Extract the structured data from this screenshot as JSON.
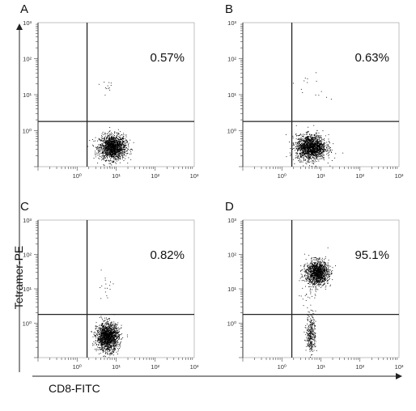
{
  "figure": {
    "y_axis_title": "Tetramer-PE",
    "x_axis_title": "CD8-FITC"
  },
  "chart_data": [
    {
      "type": "scatter",
      "panel": "A",
      "x_axis": "CD8-FITC",
      "y_axis": "Tetramer-PE",
      "x_scale": "log",
      "y_scale": "log",
      "x_range": [
        0.1,
        1000
      ],
      "y_range": [
        0.1,
        1000
      ],
      "x_tick_labels": [
        "10⁰",
        "10¹",
        "10²",
        "10³"
      ],
      "y_tick_labels": [
        "10⁰",
        "10¹",
        "10²",
        "10³"
      ],
      "quadrant_gate": {
        "x": 1.8,
        "y": 1.8
      },
      "annotation": "0.57%",
      "populations": [
        {
          "x_center": 8,
          "y_center": 0.35,
          "spread_x": 0.17,
          "spread_y": 0.17,
          "count": 1600
        },
        {
          "x_center": 6,
          "y_center": 18,
          "spread_x": 0.12,
          "spread_y": 0.12,
          "count": 12
        }
      ]
    },
    {
      "type": "scatter",
      "panel": "B",
      "x_axis": "CD8-FITC",
      "y_axis": "Tetramer-PE",
      "x_scale": "log",
      "y_scale": "log",
      "x_range": [
        0.1,
        1000
      ],
      "y_range": [
        0.1,
        1000
      ],
      "x_tick_labels": [
        "10⁰",
        "10¹",
        "10²",
        "10³"
      ],
      "y_tick_labels": [
        "10⁰",
        "10¹",
        "10²",
        "10³"
      ],
      "quadrant_gate": {
        "x": 1.8,
        "y": 1.8
      },
      "annotation": "0.63%",
      "populations": [
        {
          "x_center": 5.5,
          "y_center": 0.35,
          "spread_x": 0.19,
          "spread_y": 0.17,
          "count": 1700
        },
        {
          "x_center": 6,
          "y_center": 15,
          "spread_x": 0.2,
          "spread_y": 0.2,
          "count": 14
        }
      ]
    },
    {
      "type": "scatter",
      "panel": "C",
      "x_axis": "CD8-FITC",
      "y_axis": "Tetramer-PE",
      "x_scale": "log",
      "y_scale": "log",
      "x_range": [
        0.1,
        1000
      ],
      "y_range": [
        0.1,
        1000
      ],
      "x_tick_labels": [
        "10⁰",
        "10¹",
        "10²",
        "10³"
      ],
      "y_tick_labels": [
        "10⁰",
        "10¹",
        "10²",
        "10³"
      ],
      "quadrant_gate": {
        "x": 1.8,
        "y": 1.8
      },
      "annotation": "0.82%",
      "populations": [
        {
          "x_center": 6,
          "y_center": 0.4,
          "spread_x": 0.14,
          "spread_y": 0.2,
          "count": 1600
        },
        {
          "x_center": 5,
          "y_center": 12,
          "spread_x": 0.12,
          "spread_y": 0.2,
          "count": 16
        }
      ]
    },
    {
      "type": "scatter",
      "panel": "D",
      "x_axis": "CD8-FITC",
      "y_axis": "Tetramer-PE",
      "x_scale": "log",
      "y_scale": "log",
      "x_range": [
        0.1,
        1000
      ],
      "y_range": [
        0.1,
        1000
      ],
      "x_tick_labels": [
        "10⁰",
        "10¹",
        "10²",
        "10³"
      ],
      "y_tick_labels": [
        "10⁰",
        "10¹",
        "10²",
        "10³"
      ],
      "quadrant_gate": {
        "x": 1.8,
        "y": 1.8
      },
      "annotation": "95.1%",
      "populations": [
        {
          "x_center": 8,
          "y_center": 30,
          "spread_x": 0.14,
          "spread_y": 0.17,
          "count": 1300
        },
        {
          "x_center": 5.5,
          "y_center": 0.5,
          "spread_x": 0.06,
          "spread_y": 0.28,
          "count": 320
        },
        {
          "x_center": 5,
          "y_center": 12,
          "spread_x": 0.12,
          "spread_y": 0.3,
          "count": 60
        }
      ]
    }
  ]
}
